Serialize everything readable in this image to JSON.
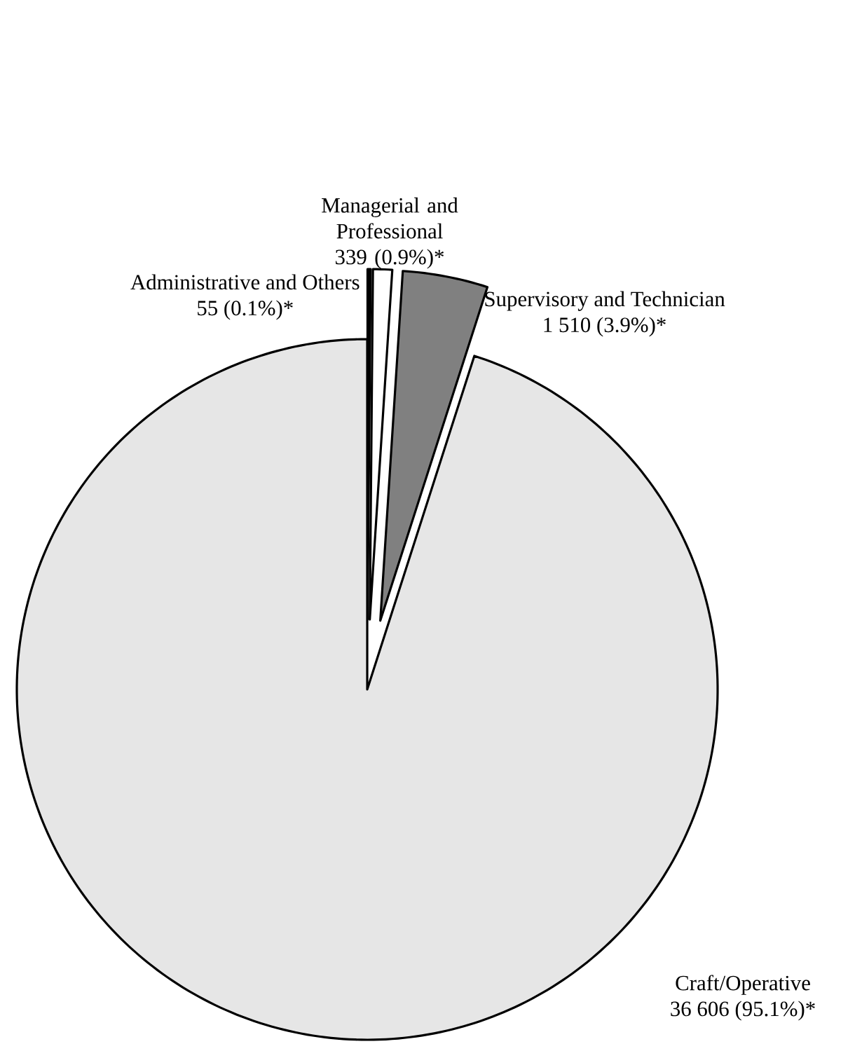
{
  "chart_data": {
    "type": "pie",
    "categories": [
      "Administrative and Others",
      "Managerial and Professional",
      "Supervisory and Technician",
      "Craft/Operative"
    ],
    "values": [
      55,
      339,
      1510,
      36606
    ],
    "value_labels": [
      "55 (0.1%)*",
      "339 (0.9%)*",
      "1 510 (3.9%)*",
      "36 606 (95.1%)*"
    ],
    "colors": [
      "#000000",
      "#ffffff",
      "#808080",
      "#e6e6e6"
    ]
  }
}
